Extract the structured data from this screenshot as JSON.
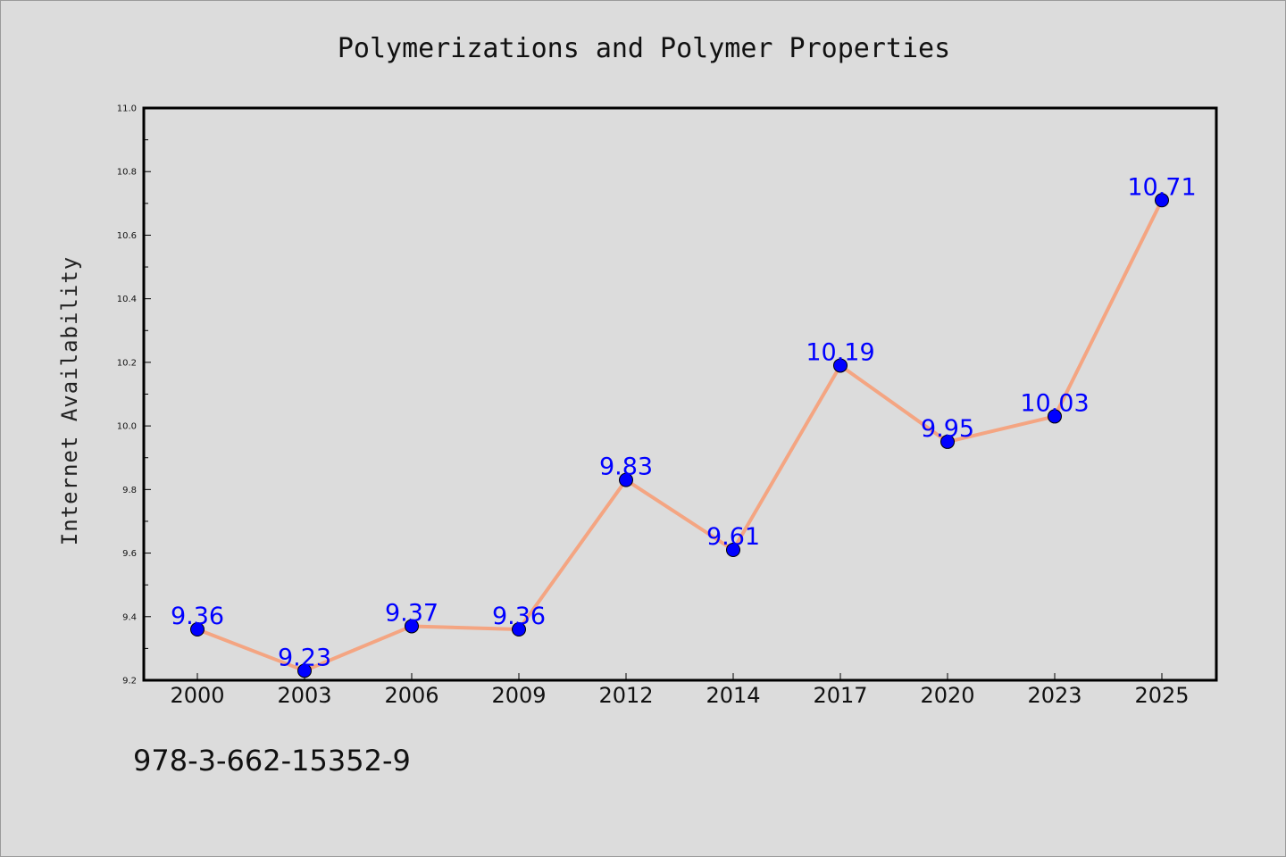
{
  "footer": {
    "isbn": "978-3-662-15352-9"
  },
  "chart_data": {
    "type": "line",
    "title": "Polymerizations and Polymer Properties",
    "xlabel": "",
    "ylabel": "Internet Availability",
    "categories": [
      "2000",
      "2003",
      "2006",
      "2009",
      "2012",
      "2014",
      "2017",
      "2020",
      "2023",
      "2025"
    ],
    "series": [
      {
        "values": [
          9.36,
          9.23,
          9.37,
          9.36,
          9.83,
          9.61,
          10.19,
          9.95,
          10.03,
          10.71
        ],
        "labels": [
          "9.36",
          "9.23",
          "9.37",
          "9.36",
          "9.83",
          "9.61",
          "10.19",
          "9.95",
          "10.03",
          "10.71"
        ],
        "line_color": "#f4a582",
        "marker_color": "#0000ff"
      }
    ],
    "ylim": [
      9.2,
      11.0
    ],
    "yticks": [
      "9.2",
      "9.4",
      "9.6",
      "9.8",
      "10.0",
      "10.2",
      "10.4",
      "10.6",
      "10.8",
      "11.0"
    ],
    "label_color": "#0000ff",
    "grid": false,
    "legend": "none"
  }
}
